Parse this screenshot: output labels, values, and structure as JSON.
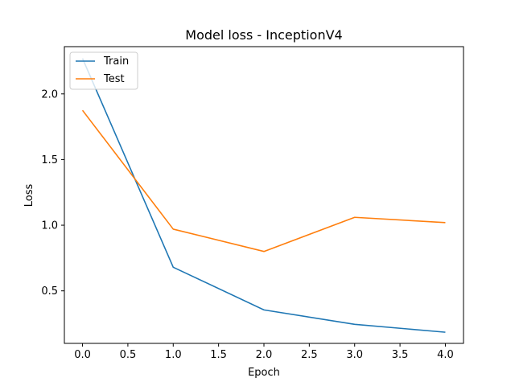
{
  "chart_data": {
    "type": "line",
    "title": "Model loss - InceptionV4",
    "xlabel": "Epoch",
    "ylabel": "Loss",
    "x": [
      0,
      1,
      2,
      3,
      4
    ],
    "xlim": [
      -0.2,
      4.2
    ],
    "ylim": [
      0.1,
      2.36
    ],
    "xticks": [
      "0.0",
      "0.5",
      "1.0",
      "1.5",
      "2.0",
      "2.5",
      "3.0",
      "3.5",
      "4.0"
    ],
    "yticks": [
      "0.5",
      "1.0",
      "1.5",
      "2.0"
    ],
    "grid": false,
    "legend_position": "upper-left",
    "series": [
      {
        "name": "Train",
        "color": "#1f77b4",
        "values": [
          2.27,
          0.68,
          0.355,
          0.245,
          0.185
        ]
      },
      {
        "name": "Test",
        "color": "#ff7f0e",
        "values": [
          1.875,
          0.97,
          0.8,
          1.06,
          1.02
        ]
      }
    ]
  }
}
